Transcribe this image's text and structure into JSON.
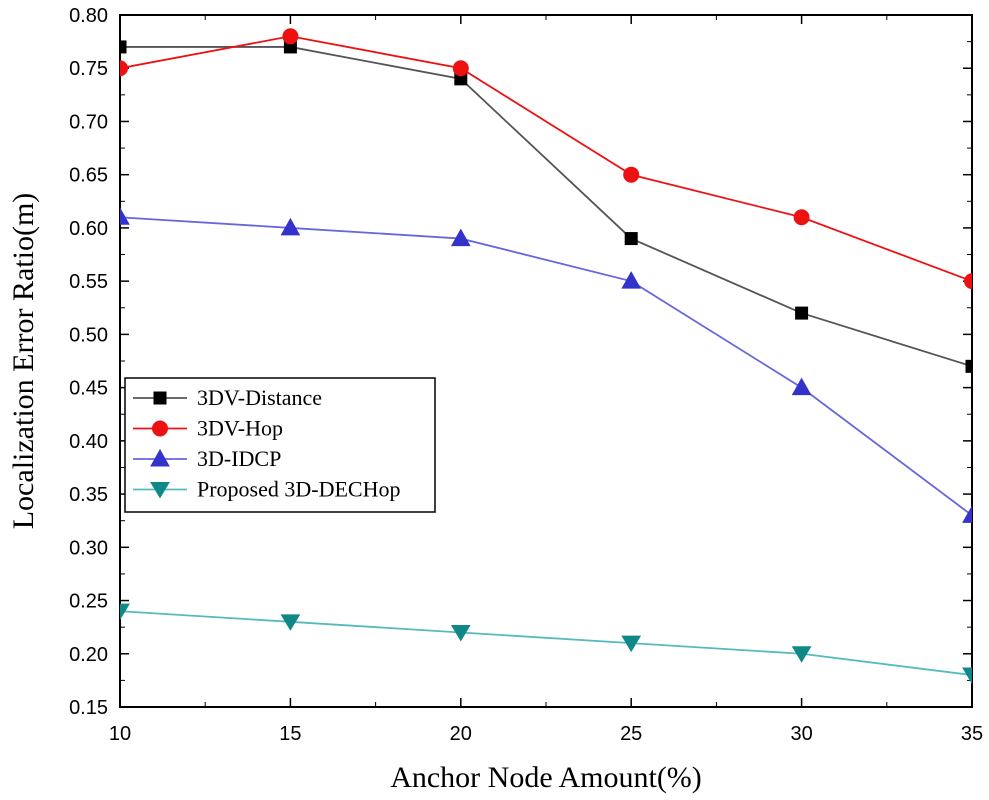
{
  "chart_data": {
    "type": "line",
    "title": "",
    "xlabel": "Anchor Node Amount(%)",
    "ylabel": "Localization Error Ratio(m)",
    "x": [
      10,
      15,
      20,
      25,
      30,
      35
    ],
    "xlim": [
      10,
      35
    ],
    "ylim": [
      0.15,
      0.8
    ],
    "x_ticks": [
      10,
      15,
      20,
      25,
      30,
      35
    ],
    "y_ticks": [
      "0.15",
      "0.20",
      "0.25",
      "0.30",
      "0.35",
      "0.40",
      "0.45",
      "0.50",
      "0.55",
      "0.60",
      "0.65",
      "0.70",
      "0.75",
      "0.80"
    ],
    "grid": false,
    "legend_position": "middle-left",
    "series": [
      {
        "name": "3DV-Distance",
        "values": [
          0.77,
          0.77,
          0.74,
          0.59,
          0.52,
          0.47
        ],
        "color": "#000000",
        "line_color": "#555555",
        "marker": "square"
      },
      {
        "name": "3DV-Hop",
        "values": [
          0.75,
          0.78,
          0.75,
          0.65,
          0.61,
          0.55
        ],
        "color": "#ee1111",
        "line_color": "#ee1111",
        "marker": "circle"
      },
      {
        "name": "3D-IDCP",
        "values": [
          0.61,
          0.6,
          0.59,
          0.55,
          0.45,
          0.33
        ],
        "color": "#3333cc",
        "line_color": "#6666dd",
        "marker": "triangle-up"
      },
      {
        "name": "Proposed 3D-DECHop",
        "values": [
          0.24,
          0.23,
          0.22,
          0.21,
          0.2,
          0.18
        ],
        "color": "#118888",
        "line_color": "#55bbbb",
        "marker": "triangle-down"
      }
    ]
  }
}
